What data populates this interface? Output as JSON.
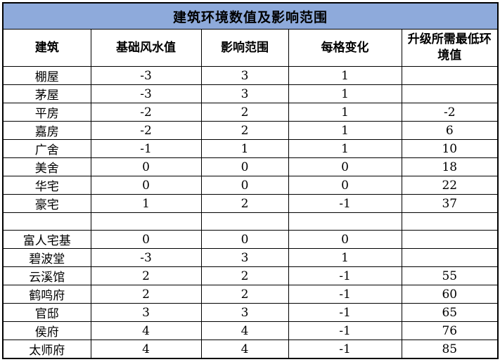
{
  "colors": {
    "title_bg": "#8EAADB",
    "grid": "#000000",
    "background": "#FFFFFF",
    "text": "#000000"
  },
  "chart_data": {
    "type": "table",
    "title": "建筑环境数值及影响范围",
    "columns": [
      "建筑",
      "基础风水值",
      "影响范围",
      "每格变化",
      "升级所需最低环境值"
    ],
    "rows": [
      [
        "棚屋",
        "-3",
        "3",
        "1",
        ""
      ],
      [
        "茅屋",
        "-3",
        "3",
        "1",
        ""
      ],
      [
        "平房",
        "-2",
        "2",
        "1",
        "-2"
      ],
      [
        "嘉房",
        "-2",
        "2",
        "1",
        "6"
      ],
      [
        "广舍",
        "-1",
        "1",
        "1",
        "10"
      ],
      [
        "美舍",
        "0",
        "0",
        "0",
        "18"
      ],
      [
        "华宅",
        "0",
        "0",
        "0",
        "22"
      ],
      [
        "豪宅",
        "1",
        "2",
        "-1",
        "37"
      ],
      [
        "",
        "",
        "",
        "",
        ""
      ],
      [
        "富人宅基",
        "0",
        "0",
        "0",
        ""
      ],
      [
        "碧波堂",
        "-3",
        "3",
        "1",
        ""
      ],
      [
        "云溪馆",
        "2",
        "2",
        "-1",
        "55"
      ],
      [
        "鹤鸣府",
        "2",
        "2",
        "-1",
        "60"
      ],
      [
        "官邸",
        "3",
        "3",
        "-1",
        "65"
      ],
      [
        "侯府",
        "4",
        "4",
        "-1",
        "76"
      ],
      [
        "太师府",
        "4",
        "4",
        "-1",
        "85"
      ]
    ],
    "layout": {
      "title_row_background": "#8EAADB",
      "grid": "on",
      "spacer_row_index": 8
    }
  }
}
